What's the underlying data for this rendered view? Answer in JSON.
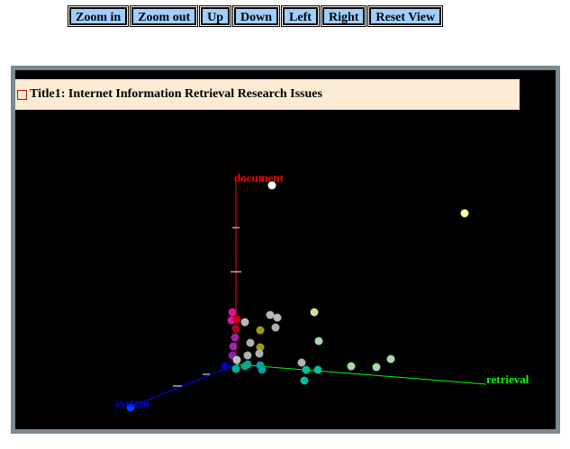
{
  "toolbar": {
    "buttons": [
      "Zoom in",
      "Zoom out",
      "Up",
      "Down",
      "Left",
      "Right",
      "Reset View"
    ]
  },
  "title": "Title1: Internet Information Retrieval Research Issues",
  "axes": {
    "z": {
      "label": "document",
      "color": "#ff0000"
    },
    "x": {
      "label": "retrieval",
      "color": "#00ff00"
    },
    "y": {
      "label": "system",
      "color": "#0000ff"
    }
  },
  "colors": {
    "background": "#000000",
    "title_bg": "#fdebd3",
    "button_bg": "#9fcfff",
    "frame": "#7a8a94"
  }
}
